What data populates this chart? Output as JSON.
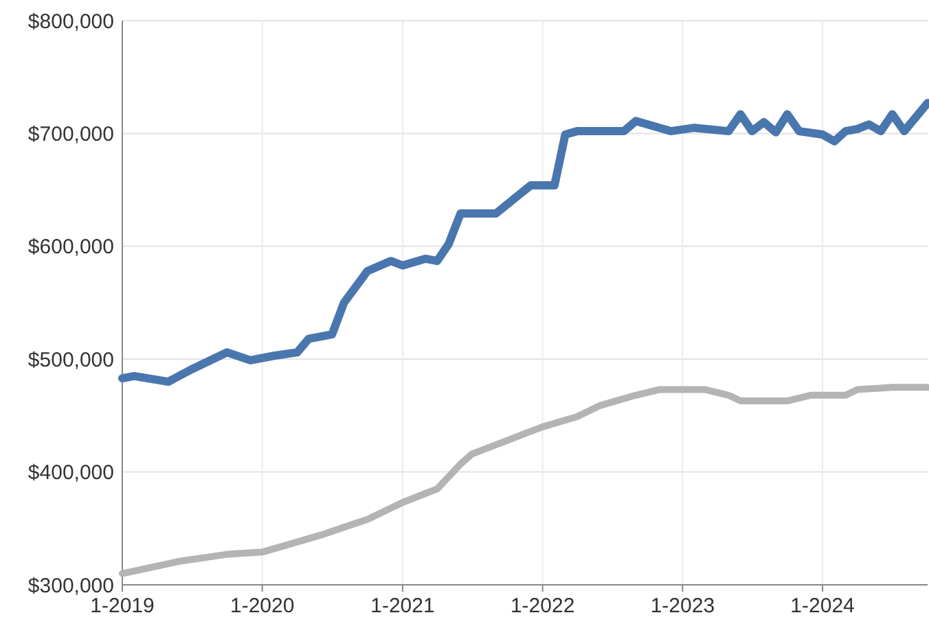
{
  "chart_data": {
    "type": "line",
    "grid": true,
    "xlim": [
      "2019-01",
      "2024-10"
    ],
    "xticks": [
      {
        "value": "2019-01",
        "label": "1-2019"
      },
      {
        "value": "2020-01",
        "label": "1-2020"
      },
      {
        "value": "2021-01",
        "label": "1-2021"
      },
      {
        "value": "2022-01",
        "label": "1-2022"
      },
      {
        "value": "2023-01",
        "label": "1-2023"
      },
      {
        "value": "2024-01",
        "label": "1-2024"
      }
    ],
    "ylim": [
      300000,
      800000
    ],
    "yticks": [
      {
        "value": 300000,
        "label": "$300,000"
      },
      {
        "value": 400000,
        "label": "$400,000"
      },
      {
        "value": 500000,
        "label": "$500,000"
      },
      {
        "value": 600000,
        "label": "$600,000"
      },
      {
        "value": 700000,
        "label": "$700,000"
      },
      {
        "value": 800000,
        "label": "$800,000"
      }
    ],
    "series": [
      {
        "color": "#4a76ae",
        "x": [
          "2019-01",
          "2019-02",
          "2019-05",
          "2019-07",
          "2019-10",
          "2019-12",
          "2020-02",
          "2020-04",
          "2020-05",
          "2020-07",
          "2020-08",
          "2020-10",
          "2020-12",
          "2021-01",
          "2021-03",
          "2021-04",
          "2021-05",
          "2021-06",
          "2021-09",
          "2021-12",
          "2022-02",
          "2022-03",
          "2022-04",
          "2022-08",
          "2022-09",
          "2022-12",
          "2023-02",
          "2023-05",
          "2023-06",
          "2023-07",
          "2023-08",
          "2023-09",
          "2023-10",
          "2023-11",
          "2024-01",
          "2024-02",
          "2024-03",
          "2024-04",
          "2024-05",
          "2024-06",
          "2024-07",
          "2024-08",
          "2024-10"
        ],
        "values": [
          483000,
          485000,
          480000,
          491000,
          506000,
          499000,
          503000,
          506000,
          518000,
          522000,
          550000,
          578000,
          587000,
          583000,
          589000,
          587000,
          602000,
          629000,
          629000,
          654000,
          654000,
          699000,
          702000,
          702000,
          711000,
          702000,
          705000,
          702000,
          717000,
          702000,
          710000,
          701000,
          717000,
          702000,
          699000,
          693000,
          702000,
          704000,
          708000,
          702000,
          717000,
          702000,
          727000
        ]
      },
      {
        "color": "#b4b4b4",
        "x": [
          "2019-01",
          "2019-06",
          "2019-10",
          "2020-01",
          "2020-06",
          "2020-10",
          "2021-01",
          "2021-04",
          "2021-06",
          "2021-07",
          "2021-10",
          "2022-01",
          "2022-04",
          "2022-06",
          "2022-09",
          "2022-11",
          "2023-03",
          "2023-05",
          "2023-06",
          "2023-10",
          "2023-12",
          "2024-03",
          "2024-04",
          "2024-07",
          "2024-10"
        ],
        "values": [
          310000,
          321000,
          327000,
          329000,
          344000,
          358000,
          373000,
          385000,
          407000,
          416000,
          428000,
          440000,
          449000,
          459000,
          468000,
          473000,
          473000,
          468000,
          463000,
          463000,
          468000,
          468000,
          473000,
          475000,
          475000
        ]
      }
    ]
  }
}
